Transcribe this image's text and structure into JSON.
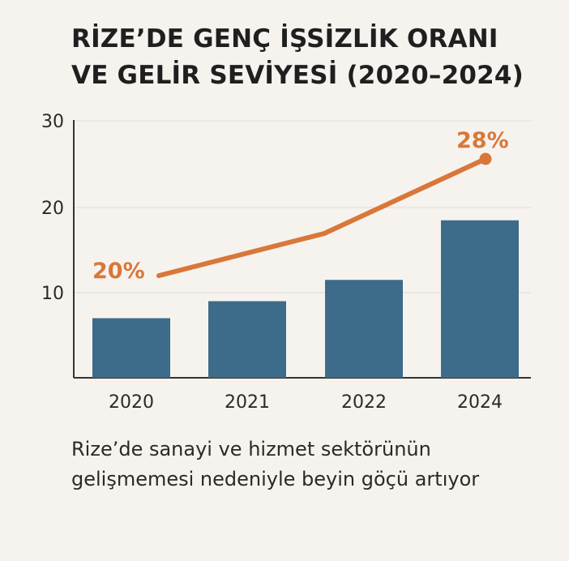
{
  "title": {
    "line1": "RİZE’DE GENÇ İŞSİZLİK ORANI",
    "line2": "VE GELİR SEVİYESİ (2020–2024)"
  },
  "caption": {
    "line1": "Rize’de sanayi ve hizmet sektörünün",
    "line2": "gelişmemesi nedeniyle beyin göçü artıyor"
  },
  "colors": {
    "bar": "#3d6b8a",
    "line": "#d9773a",
    "axis": "#333333",
    "grid": "#dcdcdc"
  },
  "chart_data": {
    "type": "bar",
    "title": "RİZE’DE GENÇ İŞSİZLİK ORANI VE GELİR SEVİYESİ (2020–2024)",
    "categories": [
      "2020",
      "2021",
      "2022",
      "2024"
    ],
    "series": [
      {
        "type": "bar",
        "values": [
          7,
          9,
          11.5,
          18.5
        ]
      },
      {
        "type": "line",
        "values": [
          20,
          null,
          null,
          28
        ],
        "data_labels": [
          "20%",
          "",
          "",
          "28%"
        ]
      }
    ],
    "yticks": [
      10,
      20,
      30
    ],
    "ylim": [
      0,
      30
    ],
    "grid": true
  }
}
